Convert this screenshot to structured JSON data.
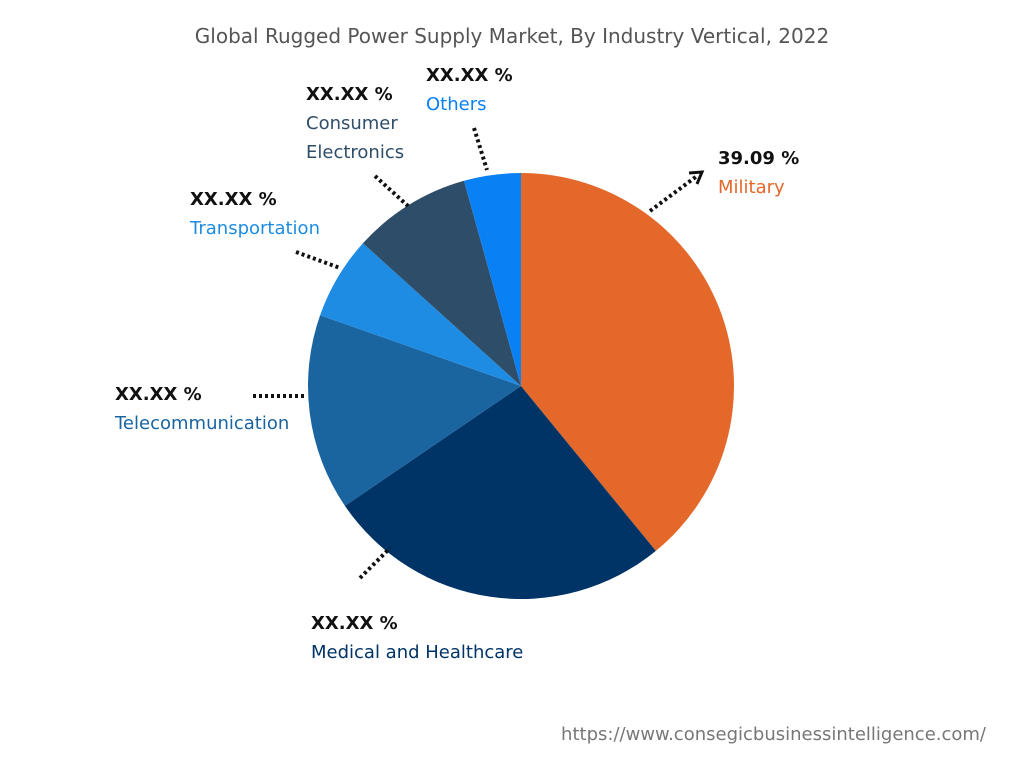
{
  "chart_data": {
    "type": "pie",
    "title": "Global Rugged Power Supply Market, By Industry Vertical, 2022",
    "start_angle": "top, clockwise",
    "slices": [
      {
        "name": "Military",
        "label": "39.09 %",
        "value": 39.09,
        "color": "#E4682A"
      },
      {
        "name": "Medical and Healthcare",
        "label": "XX.XX %",
        "value": 26.4,
        "color": "#003366"
      },
      {
        "name": "Telecommunication",
        "label": "XX.XX %",
        "value": 14.9,
        "color": "#1A64A0"
      },
      {
        "name": "Transportation",
        "label": "XX.XX %",
        "value": 6.3,
        "color": "#1E8CE3"
      },
      {
        "name": "Consumer Electronics",
        "label": "XX.XX %",
        "value": 9.0,
        "color": "#2E4D69"
      },
      {
        "name": "Others",
        "label": "XX.XX %",
        "value": 4.31,
        "color": "#0A80F5"
      }
    ]
  },
  "footer": {
    "url": "https://www.consegicbusinessintelligence.com/"
  }
}
